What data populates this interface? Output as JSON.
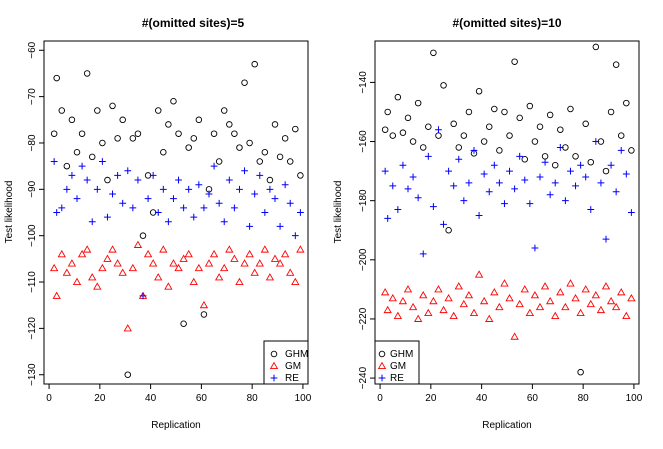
{
  "chart_data": [
    {
      "type": "scatter",
      "title": "#(omitted sites)=5",
      "xlabel": "Replication",
      "ylabel": "Test likelihood",
      "xlim": [
        -2,
        102
      ],
      "ylim": [
        -132,
        -58
      ],
      "xticks": [
        0,
        20,
        40,
        60,
        80,
        100
      ],
      "yticks": [
        -130,
        -120,
        -110,
        -100,
        -90,
        -80,
        -70,
        -60
      ],
      "legend_position": "bottom-right",
      "series": [
        {
          "name": "GHM",
          "marker": "circle",
          "color": "#000000",
          "x": [
            2,
            3,
            5,
            7,
            9,
            11,
            13,
            15,
            17,
            19,
            21,
            23,
            25,
            27,
            29,
            31,
            33,
            35,
            37,
            39,
            41,
            43,
            45,
            47,
            49,
            51,
            53,
            55,
            57,
            59,
            61,
            63,
            65,
            67,
            69,
            71,
            73,
            75,
            77,
            79,
            81,
            83,
            85,
            87,
            89,
            91,
            93,
            95,
            97,
            99
          ],
          "y": [
            -78,
            -66,
            -73,
            -85,
            -75,
            -82,
            -78,
            -65,
            -83,
            -73,
            -80,
            -88,
            -72,
            -79,
            -75,
            -130,
            -79,
            -78,
            -100,
            -87,
            -95,
            -73,
            -82,
            -76,
            -71,
            -78,
            -119,
            -81,
            -79,
            -75,
            -117,
            -90,
            -78,
            -84,
            -73,
            -76,
            -78,
            -81,
            -67,
            -80,
            -63,
            -84,
            -82,
            -88,
            -76,
            -83,
            -79,
            -84,
            -77,
            -87
          ]
        },
        {
          "name": "GM",
          "marker": "triangle",
          "color": "#ff0000",
          "x": [
            2,
            3,
            5,
            7,
            9,
            11,
            13,
            15,
            17,
            19,
            21,
            23,
            25,
            27,
            29,
            31,
            33,
            35,
            37,
            39,
            41,
            43,
            45,
            47,
            49,
            51,
            53,
            55,
            57,
            59,
            61,
            63,
            65,
            67,
            69,
            71,
            73,
            75,
            77,
            79,
            81,
            83,
            85,
            87,
            89,
            91,
            93,
            95,
            97,
            99
          ],
          "y": [
            -107,
            -113,
            -104,
            -108,
            -106,
            -110,
            -104,
            -103,
            -109,
            -111,
            -107,
            -105,
            -103,
            -106,
            -108,
            -120,
            -107,
            -102,
            -113,
            -104,
            -106,
            -109,
            -103,
            -111,
            -106,
            -107,
            -105,
            -104,
            -110,
            -107,
            -115,
            -106,
            -104,
            -109,
            -107,
            -103,
            -105,
            -110,
            -106,
            -104,
            -108,
            -106,
            -103,
            -109,
            -105,
            -106,
            -104,
            -108,
            -110,
            -103
          ]
        },
        {
          "name": "RE",
          "marker": "plus",
          "color": "#0000ff",
          "x": [
            2,
            3,
            5,
            7,
            9,
            11,
            13,
            15,
            17,
            19,
            21,
            23,
            25,
            27,
            29,
            31,
            33,
            35,
            37,
            39,
            41,
            43,
            45,
            47,
            49,
            51,
            53,
            55,
            57,
            59,
            61,
            63,
            65,
            67,
            69,
            71,
            73,
            75,
            77,
            79,
            81,
            83,
            85,
            87,
            89,
            91,
            93,
            95,
            97,
            99
          ],
          "y": [
            -84,
            -95,
            -94,
            -90,
            -87,
            -92,
            -85,
            -88,
            -97,
            -90,
            -84,
            -96,
            -91,
            -87,
            -93,
            -86,
            -94,
            -88,
            -113,
            -92,
            -87,
            -95,
            -90,
            -97,
            -92,
            -88,
            -94,
            -90,
            -96,
            -89,
            -94,
            -91,
            -85,
            -93,
            -97,
            -88,
            -94,
            -90,
            -86,
            -98,
            -91,
            -87,
            -95,
            -90,
            -92,
            -98,
            -89,
            -93,
            -100,
            -95
          ]
        }
      ]
    },
    {
      "type": "scatter",
      "title": "#(omitted sites)=10",
      "xlabel": "Replication",
      "ylabel": "Test likelihood",
      "xlim": [
        -2,
        102
      ],
      "ylim": [
        -242,
        -126
      ],
      "xticks": [
        0,
        20,
        40,
        60,
        80,
        100
      ],
      "yticks": [
        -240,
        -220,
        -200,
        -180,
        -160,
        -140
      ],
      "legend_position": "bottom-left",
      "series": [
        {
          "name": "GHM",
          "marker": "circle",
          "color": "#000000",
          "x": [
            2,
            3,
            5,
            7,
            9,
            11,
            13,
            15,
            17,
            19,
            21,
            23,
            25,
            27,
            29,
            31,
            33,
            35,
            37,
            39,
            41,
            43,
            45,
            47,
            49,
            51,
            53,
            55,
            57,
            59,
            61,
            63,
            65,
            67,
            69,
            71,
            73,
            75,
            77,
            79,
            81,
            83,
            85,
            87,
            89,
            91,
            93,
            95,
            97,
            99
          ],
          "y": [
            -156,
            -150,
            -158,
            -145,
            -157,
            -152,
            -160,
            -147,
            -162,
            -155,
            -130,
            -158,
            -141,
            -190,
            -154,
            -162,
            -158,
            -150,
            -164,
            -143,
            -160,
            -155,
            -149,
            -163,
            -150,
            -158,
            -133,
            -152,
            -166,
            -148,
            -160,
            -155,
            -165,
            -151,
            -168,
            -156,
            -162,
            -149,
            -165,
            -238,
            -154,
            -167,
            -128,
            -160,
            -170,
            -150,
            -134,
            -158,
            -147,
            -163
          ]
        },
        {
          "name": "GM",
          "marker": "triangle",
          "color": "#ff0000",
          "x": [
            2,
            3,
            5,
            7,
            9,
            11,
            13,
            15,
            17,
            19,
            21,
            23,
            25,
            27,
            29,
            31,
            33,
            35,
            37,
            39,
            41,
            43,
            45,
            47,
            49,
            51,
            53,
            55,
            57,
            59,
            61,
            63,
            65,
            67,
            69,
            71,
            73,
            75,
            77,
            79,
            81,
            83,
            85,
            87,
            89,
            91,
            93,
            95,
            97,
            99
          ],
          "y": [
            -211,
            -217,
            -213,
            -219,
            -214,
            -210,
            -216,
            -220,
            -212,
            -218,
            -214,
            -210,
            -217,
            -213,
            -219,
            -209,
            -215,
            -212,
            -218,
            -205,
            -214,
            -220,
            -211,
            -216,
            -208,
            -213,
            -226,
            -215,
            -210,
            -218,
            -212,
            -216,
            -209,
            -214,
            -219,
            -211,
            -216,
            -208,
            -213,
            -218,
            -210,
            -215,
            -212,
            -217,
            -209,
            -214,
            -216,
            -211,
            -219,
            -213
          ]
        },
        {
          "name": "RE",
          "marker": "plus",
          "color": "#0000ff",
          "x": [
            2,
            3,
            5,
            7,
            9,
            11,
            13,
            15,
            17,
            19,
            21,
            23,
            25,
            27,
            29,
            31,
            33,
            35,
            37,
            39,
            41,
            43,
            45,
            47,
            49,
            51,
            53,
            55,
            57,
            59,
            61,
            63,
            65,
            67,
            69,
            71,
            73,
            75,
            77,
            79,
            81,
            83,
            85,
            87,
            89,
            91,
            93,
            95,
            97,
            99
          ],
          "y": [
            -170,
            -186,
            -175,
            -183,
            -168,
            -176,
            -172,
            -179,
            -198,
            -165,
            -182,
            -156,
            -188,
            -170,
            -175,
            -166,
            -180,
            -174,
            -163,
            -185,
            -171,
            -177,
            -168,
            -174,
            -181,
            -170,
            -176,
            -165,
            -173,
            -181,
            -196,
            -172,
            -167,
            -178,
            -174,
            -162,
            -180,
            -170,
            -175,
            -168,
            -172,
            -183,
            -160,
            -174,
            -193,
            -168,
            -177,
            -163,
            -171,
            -184
          ]
        }
      ]
    }
  ]
}
